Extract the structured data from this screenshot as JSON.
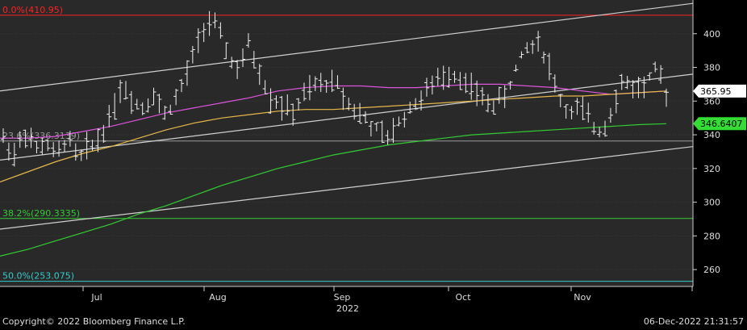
{
  "chart_data": {
    "type": "ohlc",
    "x_axis": {
      "month_ticks": [
        "Jul",
        "Aug",
        "Sep",
        "Oct",
        "Nov"
      ],
      "year_label": "2022"
    },
    "y_axis": {
      "side": "right",
      "ticks": [
        260,
        280,
        300,
        320,
        340,
        360,
        380,
        400
      ],
      "ylim": [
        250,
        420
      ]
    },
    "last_price": {
      "value": 365.95,
      "label": "365.95",
      "color": "#ffffff"
    },
    "ma_label": {
      "value": 346.6407,
      "label": "346.6407",
      "color": "#33dd33"
    },
    "fib_levels": [
      {
        "label": "0.0%(410.95)",
        "value": 410.95,
        "color": "#ff2222"
      },
      {
        "label": "23.6%(336.3139)",
        "value": 336.3139,
        "color": "#9a9a9a"
      },
      {
        "label": "38.2%(290.3335)",
        "value": 290.3335,
        "color": "#33cc33"
      },
      {
        "label": "50.0%(253.075)",
        "value": 253.075,
        "color": "#33cccc"
      }
    ],
    "trend_channel": {
      "color": "#d0d0d0",
      "lines": [
        {
          "name": "upper",
          "start": 366,
          "end": 418
        },
        {
          "name": "middle",
          "start": 325,
          "end": 376
        },
        {
          "name": "lower",
          "start": 284,
          "end": 333
        }
      ]
    },
    "moving_averages": [
      {
        "name": "short",
        "color": "#dd55dd",
        "values": [
          338,
          338,
          339,
          342,
          345,
          349,
          353,
          356,
          359,
          362,
          366,
          368,
          369,
          369,
          368,
          368,
          369,
          370,
          370,
          369,
          368,
          366,
          364,
          365,
          366
        ]
      },
      {
        "name": "medium",
        "color": "#e8b84a",
        "values": [
          312,
          318,
          324,
          329,
          333,
          338,
          343,
          347,
          350,
          352,
          354,
          355,
          355,
          356,
          357,
          358,
          359,
          360,
          361,
          362,
          363,
          363,
          364,
          365,
          366
        ]
      },
      {
        "name": "long",
        "color": "#33cc33",
        "values": [
          268,
          272,
          277,
          282,
          287,
          293,
          298,
          304,
          310,
          315,
          320,
          324,
          328,
          331,
          334,
          336,
          338,
          340,
          341,
          342,
          343,
          344,
          345,
          346,
          346.6
        ]
      }
    ],
    "price_path": [
      338,
      328,
      343,
      331,
      335,
      326,
      340,
      325,
      333,
      338,
      352,
      368,
      362,
      356,
      365,
      352,
      360,
      372,
      392,
      408,
      403,
      388,
      377,
      394,
      376,
      362,
      358,
      352,
      362,
      368,
      371,
      372,
      362,
      354,
      348,
      342,
      337,
      348,
      355,
      362,
      368,
      374,
      378,
      372,
      366,
      360,
      358,
      364,
      380,
      392,
      396,
      382,
      362,
      352,
      356,
      346,
      342,
      358,
      372,
      368,
      369,
      378,
      366
    ]
  },
  "footer": {
    "copyright": "Copyright© 2022 Bloomberg Finance L.P.",
    "timestamp": "06-Dec-2022 21:31:57"
  }
}
